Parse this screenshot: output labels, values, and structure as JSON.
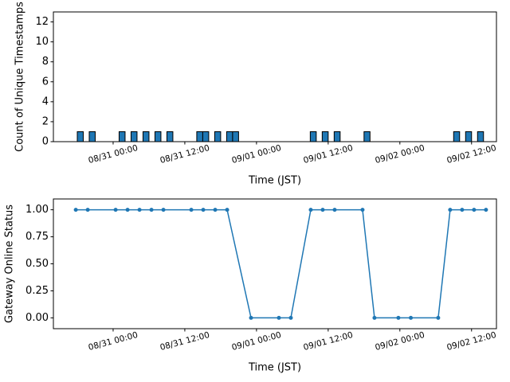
{
  "chart_data": [
    {
      "type": "bar",
      "ylabel": "Count of Unique Timestamps",
      "xlabel": "Time (JST)",
      "color": "#1f77b4",
      "x": [
        "08/30 18:00",
        "08/30 20:00",
        "08/31 01:00",
        "08/31 03:00",
        "08/31 05:00",
        "08/31 07:00",
        "08/31 09:00",
        "08/31 14:00",
        "08/31 15:00",
        "08/31 17:00",
        "08/31 19:00",
        "08/31 20:00",
        "09/01 09:00",
        "09/01 11:00",
        "09/01 13:00",
        "09/01 18:00",
        "09/02 09:00",
        "09/02 11:00",
        "09/02 13:00"
      ],
      "values": [
        1,
        1,
        1,
        1,
        1,
        1,
        1,
        1,
        1,
        1,
        1,
        1,
        1,
        1,
        1,
        1,
        1,
        1,
        1
      ],
      "xlim": [
        "08/30 14:00",
        "09/02 16:10"
      ],
      "xticks": [
        "08/31 00:00",
        "08/31 12:00",
        "09/01 00:00",
        "09/01 12:00",
        "09/02 00:00",
        "09/02 12:00"
      ],
      "ylim": [
        0,
        13
      ],
      "yticks": [
        0,
        2,
        4,
        6,
        8,
        10,
        12
      ]
    },
    {
      "type": "line",
      "ylabel": "Gateway Online Status",
      "xlabel": "Time (JST)",
      "color": "#1f77b4",
      "x": [
        "08/30 17:45",
        "08/30 19:45",
        "08/31 00:25",
        "08/31 02:25",
        "08/31 04:25",
        "08/31 06:25",
        "08/31 08:25",
        "08/31 13:05",
        "08/31 15:05",
        "08/31 17:05",
        "08/31 19:05",
        "08/31 23:05",
        "09/01 03:45",
        "09/01 05:45",
        "09/01 09:05",
        "09/01 11:05",
        "09/01 13:05",
        "09/01 17:45",
        "09/01 19:45",
        "09/01 23:45",
        "09/02 01:50",
        "09/02 06:25",
        "09/02 08:25",
        "09/02 10:25",
        "09/02 12:25",
        "09/02 14:25"
      ],
      "values": [
        1,
        1,
        1,
        1,
        1,
        1,
        1,
        1,
        1,
        1,
        1,
        0,
        0,
        0,
        1,
        1,
        1,
        1,
        0,
        0,
        0,
        0,
        1,
        1,
        1,
        1
      ],
      "xlim": [
        "08/30 14:00",
        "09/02 16:10"
      ],
      "xticks": [
        "08/31 00:00",
        "08/31 12:00",
        "09/01 00:00",
        "09/01 12:00",
        "09/02 00:00",
        "09/02 12:00"
      ],
      "ylim": [
        -0.1,
        1.1
      ],
      "yticks": [
        {
          "value": 0,
          "label": "0.00"
        },
        {
          "value": 0.25,
          "label": "0.25"
        },
        {
          "value": 0.5,
          "label": "0.50"
        },
        {
          "value": 0.75,
          "label": "0.75"
        },
        {
          "value": 1,
          "label": "1.00"
        }
      ]
    }
  ]
}
